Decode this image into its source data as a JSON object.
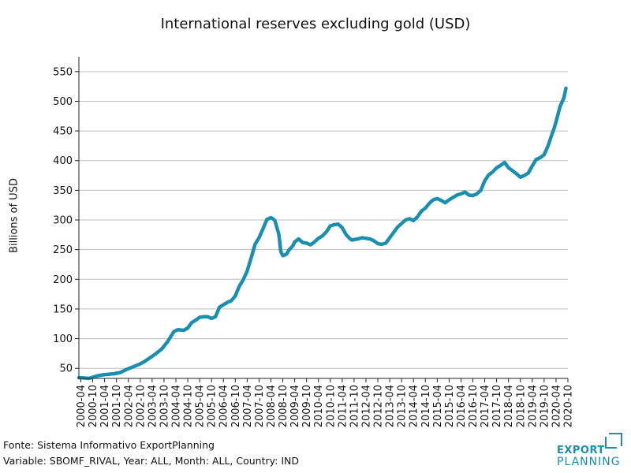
{
  "chart_data": {
    "type": "line",
    "title": "International reserves excluding gold (USD)",
    "xlabel": "",
    "ylabel": "Billions of USD",
    "ylim": [
      33,
      575
    ],
    "yticks": [
      50,
      100,
      150,
      200,
      250,
      300,
      350,
      400,
      450,
      500,
      550
    ],
    "xlim": [
      "2000-03",
      "2020-10"
    ],
    "xtick_labels": [
      "2000-04",
      "2000-10",
      "2001-04",
      "2001-10",
      "2002-04",
      "2002-10",
      "2003-04",
      "2003-10",
      "2004-04",
      "2004-10",
      "2005-04",
      "2005-10",
      "2006-04",
      "2006-10",
      "2007-04",
      "2007-10",
      "2008-04",
      "2008-10",
      "2009-04",
      "2009-10",
      "2010-04",
      "2010-10",
      "2011-04",
      "2011-10",
      "2012-04",
      "2012-10",
      "2013-04",
      "2013-10",
      "2014-04",
      "2014-10",
      "2015-04",
      "2015-10",
      "2016-04",
      "2016-10",
      "2017-04",
      "2017-10",
      "2018-04",
      "2018-10",
      "2019-04",
      "2019-10",
      "2020-04",
      "2020-10"
    ],
    "grid": "horizontal",
    "color": "#1a8fb0",
    "series": [
      {
        "x": [
          "2000-03",
          "2000-05",
          "2000-08",
          "2000-12",
          "2001-03",
          "2001-06",
          "2001-09",
          "2001-12",
          "2002-03",
          "2002-06",
          "2002-09",
          "2002-12",
          "2003-03",
          "2003-06",
          "2003-09",
          "2003-12",
          "2004-03",
          "2004-05",
          "2004-08",
          "2004-10",
          "2004-12",
          "2005-02",
          "2005-04",
          "2005-06",
          "2005-08",
          "2005-10",
          "2005-12",
          "2006-02",
          "2006-04",
          "2006-06",
          "2006-08",
          "2006-10",
          "2006-12",
          "2007-02",
          "2007-04",
          "2007-06",
          "2007-08",
          "2007-10",
          "2007-12",
          "2008-02",
          "2008-04",
          "2008-05",
          "2008-06",
          "2008-08",
          "2008-09",
          "2008-10",
          "2008-11",
          "2008-12",
          "2009-01",
          "2009-03",
          "2009-04",
          "2009-06",
          "2009-08",
          "2009-10",
          "2009-12",
          "2010-02",
          "2010-04",
          "2010-06",
          "2010-08",
          "2010-10",
          "2010-12",
          "2011-02",
          "2011-04",
          "2011-06",
          "2011-08",
          "2011-09",
          "2011-10",
          "2011-12",
          "2012-02",
          "2012-04",
          "2012-06",
          "2012-08",
          "2012-10",
          "2012-12",
          "2013-02",
          "2013-04",
          "2013-06",
          "2013-08",
          "2013-10",
          "2013-12",
          "2014-02",
          "2014-04",
          "2014-06",
          "2014-08",
          "2014-10",
          "2014-12",
          "2015-02",
          "2015-04",
          "2015-06",
          "2015-08",
          "2015-10",
          "2015-12",
          "2016-02",
          "2016-04",
          "2016-06",
          "2016-08",
          "2016-10",
          "2016-12",
          "2017-02",
          "2017-04",
          "2017-06",
          "2017-08",
          "2017-10",
          "2017-12",
          "2018-02",
          "2018-04",
          "2018-06",
          "2018-08",
          "2018-10",
          "2018-12",
          "2019-02",
          "2019-04",
          "2019-06",
          "2019-08",
          "2019-10",
          "2019-12",
          "2020-02",
          "2020-03",
          "2020-04",
          "2020-06",
          "2020-08",
          "2020-09"
        ],
        "values": [
          34,
          34,
          33,
          37,
          39,
          40,
          41,
          43,
          48,
          52,
          56,
          61,
          68,
          75,
          83,
          96,
          112,
          115,
          114,
          118,
          127,
          131,
          136,
          137,
          137,
          134,
          137,
          153,
          157,
          161,
          164,
          172,
          188,
          199,
          214,
          236,
          259,
          270,
          285,
          301,
          304,
          302,
          299,
          276,
          247,
          240,
          241,
          243,
          249,
          256,
          263,
          268,
          262,
          261,
          258,
          263,
          269,
          273,
          280,
          290,
          292,
          293,
          287,
          275,
          268,
          266,
          267,
          268,
          270,
          269,
          268,
          265,
          260,
          259,
          261,
          270,
          279,
          288,
          294,
          300,
          302,
          299,
          305,
          315,
          320,
          328,
          334,
          336,
          333,
          329,
          334,
          338,
          342,
          344,
          347,
          342,
          341,
          344,
          350,
          366,
          376,
          381,
          388,
          392,
          397,
          388,
          383,
          378,
          372,
          375,
          379,
          391,
          402,
          405,
          410,
          425,
          445,
          454,
          465,
          491,
          506,
          522
        ]
      }
    ]
  },
  "footer": {
    "source": "Fonte: Sistema Informativo ExportPlanning",
    "variable": "Variable: SBOMF_RIVAL, Year: ALL, Month: ALL, Country: IND"
  },
  "logo": {
    "line1": "EXPORT",
    "line2": "PLANNING"
  }
}
